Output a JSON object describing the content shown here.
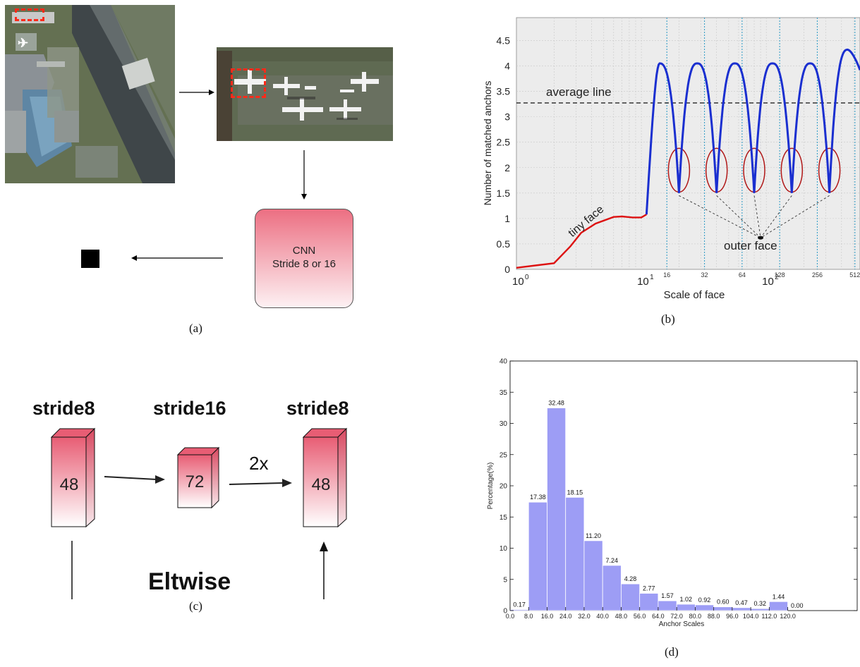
{
  "captions": {
    "a": "(a)",
    "b": "(b)",
    "c": "(c)",
    "d": "(d)"
  },
  "panel_a": {
    "cnn_line1": "CNN",
    "cnn_line2": "Stride 8 or 16",
    "colors": {
      "box_top": "#ec6f82",
      "box_bottom": "#fdf1f3",
      "highlight": "#ff2a1a"
    }
  },
  "panel_b": {
    "ylabel": "Number of matched anchors",
    "xlabel": "Scale of face",
    "yticks": [
      "0",
      "0.5",
      "1",
      "1.5",
      "2",
      "2.5",
      "3",
      "3.5",
      "4",
      "4.5"
    ],
    "xticks_major": [
      "10",
      "10",
      "10"
    ],
    "xticks_major_exp": [
      "0",
      "1",
      "2"
    ],
    "xticks_minor": [
      "16",
      "32",
      "64",
      "128",
      "256",
      "512"
    ],
    "ann_average": "average line",
    "ann_tiny": "tiny face",
    "ann_outer": "outer face",
    "colors": {
      "tiny": "#dd1111",
      "main": "#1a2fd0",
      "ellipse": "#b01818",
      "guide": "#3aa0c8"
    }
  },
  "panel_c": {
    "labels": [
      "stride8",
      "stride16",
      "stride8"
    ],
    "values": [
      "48",
      "72",
      "48"
    ],
    "arrow_label": "2x",
    "bottom_label": "Eltwise"
  },
  "chart_data": {
    "type": "bar",
    "categories": [
      "0.0",
      "8.0",
      "16.0",
      "24.0",
      "32.0",
      "40.0",
      "48.0",
      "56.0",
      "64.0",
      "72.0",
      "80.0",
      "88.0",
      "96.0",
      "104.0",
      "112.0",
      "120.0"
    ],
    "values": [
      0.17,
      17.38,
      32.48,
      18.15,
      11.2,
      7.24,
      4.28,
      2.77,
      1.57,
      1.02,
      0.92,
      0.6,
      0.47,
      0.32,
      1.44,
      0.0
    ],
    "value_labels": [
      "0.17",
      "17.38",
      "32.48",
      "18.15",
      "11.20",
      "7.24",
      "4.28",
      "2.77",
      "1.57",
      "1.02",
      "0.92",
      "0.60",
      "0.47",
      "0.32",
      "1.44",
      "0.00"
    ],
    "xlabel": "Anchor Scales",
    "ylabel": "Percentage(%)",
    "ylim": [
      0,
      40
    ],
    "yticks": [
      "0",
      "5",
      "10",
      "15",
      "20",
      "25",
      "30",
      "35",
      "40"
    ],
    "bar_color": "#9d9df5"
  }
}
